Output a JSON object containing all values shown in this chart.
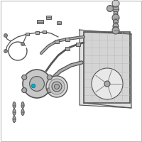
{
  "background_color": "#ffffff",
  "gc": "#888888",
  "gl": "#aaaaaa",
  "gd": "#555555",
  "gll": "#cccccc",
  "hl": "#00aacc",
  "fig_width": 2.0,
  "fig_height": 2.0,
  "dpi": 100
}
